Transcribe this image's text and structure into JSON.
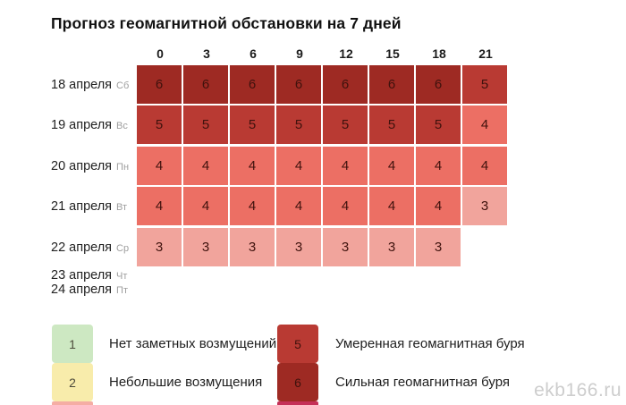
{
  "title": "Прогноз геомагнитной обстановки на 7 дней",
  "watermark": "ekb166.ru",
  "chart_data": {
    "type": "heatmap",
    "title": "Прогноз геомагнитной обстановки на 7 дней",
    "x": [
      "0",
      "3",
      "6",
      "9",
      "12",
      "15",
      "18",
      "21"
    ],
    "rows": [
      {
        "date": "18 апреля",
        "day": "Сб",
        "values": [
          6,
          6,
          6,
          6,
          6,
          6,
          6,
          5
        ]
      },
      {
        "date": "19 апреля",
        "day": "Вс",
        "values": [
          5,
          5,
          5,
          5,
          5,
          5,
          5,
          4
        ]
      },
      {
        "date": "20 апреля",
        "day": "Пн",
        "values": [
          4,
          4,
          4,
          4,
          4,
          4,
          4,
          4
        ]
      },
      {
        "date": "21 апреля",
        "day": "Вт",
        "values": [
          4,
          4,
          4,
          4,
          4,
          4,
          4,
          3
        ]
      },
      {
        "date": "22 апреля",
        "day": "Ср",
        "values": [
          3,
          3,
          3,
          3,
          3,
          3,
          3,
          null
        ]
      },
      {
        "date": "23 апреля",
        "day": "Чт",
        "values": [
          null,
          null,
          null,
          null,
          null,
          null,
          null,
          null
        ]
      },
      {
        "date": "24 апреля",
        "day": "Пт",
        "values": [
          null,
          null,
          null,
          null,
          null,
          null,
          null,
          null
        ]
      }
    ],
    "scale_colors": {
      "1": "#cde8c2",
      "2": "#f8ecab",
      "3": "#f1a49c",
      "4": "#ec6f64",
      "5": "#b93a33",
      "6": "#9e2a23"
    },
    "legend": [
      {
        "value": "1",
        "color": "#cde8c2",
        "label": "Нет заметных возмущений"
      },
      {
        "value": "2",
        "color": "#f8ecab",
        "label": "Небольшие возмущения"
      },
      {
        "value": "5",
        "color": "#b93a33",
        "label": "Умеренная геомагнитная буря"
      },
      {
        "value": "6",
        "color": "#9e2a23",
        "label": "Сильная геомагнитная буря"
      }
    ],
    "legend_slivers": {
      "left": "#f5ada4",
      "right": "#c53058"
    }
  }
}
